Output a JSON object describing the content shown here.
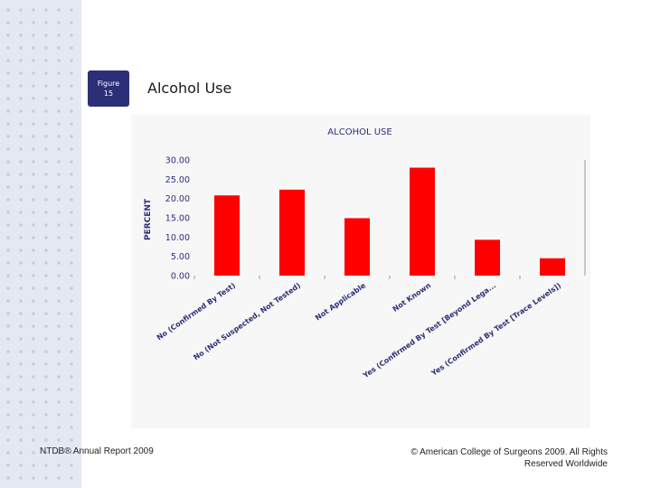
{
  "figure_badge": {
    "line1": "Figure",
    "line2": "15"
  },
  "slide_title": "Alcohol Use",
  "footer": {
    "left": "NTDB® Annual Report 2009",
    "right": "© American College of Surgeons 2009. All Rights Reserved Worldwide"
  },
  "colors": {
    "bar": "#ff0000",
    "badge": "#2b2f77",
    "title_text": "#2b2f77",
    "panel": "#f7f7f7"
  },
  "chart_data": {
    "type": "bar",
    "title": "ALCOHOL USE",
    "ylabel": "PERCENT",
    "xlabel": "",
    "ylim": [
      0,
      30
    ],
    "yticks": [
      "30.00",
      "25.00",
      "20.00",
      "15.00",
      "10.00",
      "5.00",
      "0.00"
    ],
    "grid": false,
    "categories": [
      "No (Confirmed By Test)",
      "No (Not Suspected, Not Tested)",
      "Not Applicable",
      "Not Known",
      "Yes (Confirmed By Test [Beyond Lega...",
      "Yes (Confirmed By Test [Trace Levels])"
    ],
    "values": [
      20.8,
      22.3,
      14.9,
      28.0,
      9.3,
      4.5
    ]
  }
}
